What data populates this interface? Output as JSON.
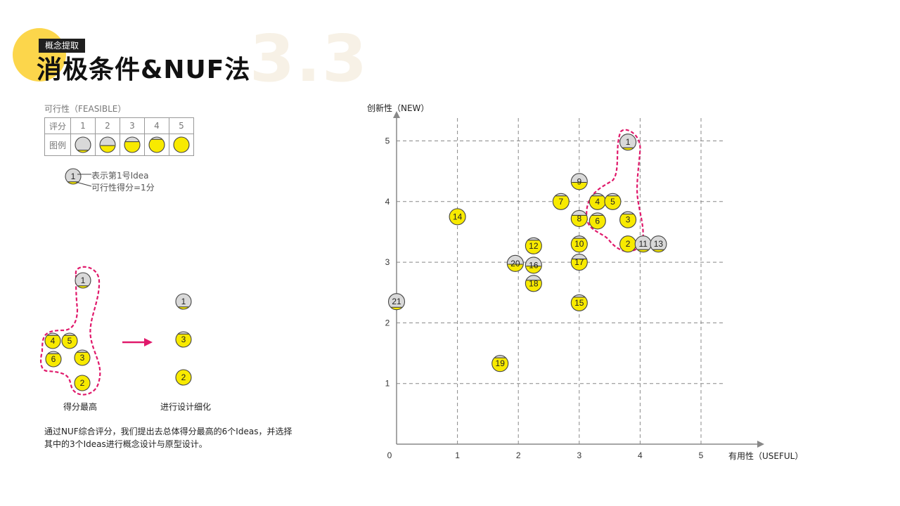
{
  "header": {
    "badge": "概念提取",
    "title": "消极条件&NUF法",
    "bg_number": "3.3",
    "accent_color": "#fcd64b"
  },
  "legend": {
    "title": "可行性（FEASIBLE）",
    "row_score_label": "评分",
    "row_icon_label": "图例",
    "scores": [
      "1",
      "2",
      "3",
      "4",
      "5"
    ],
    "sample_id": "1",
    "sample_line1": "表示第1号Idea",
    "sample_line2": "可行性得分=1分"
  },
  "process": {
    "left_caption": "得分最高",
    "right_caption": "进行设计细化",
    "left_ideas": [
      {
        "id": "1",
        "score": 1
      },
      {
        "id": "4",
        "score": 4
      },
      {
        "id": "5",
        "score": 4
      },
      {
        "id": "6",
        "score": 4
      },
      {
        "id": "3",
        "score": 4
      },
      {
        "id": "2",
        "score": 5
      }
    ],
    "right_ideas": [
      {
        "id": "1",
        "score": 1
      },
      {
        "id": "3",
        "score": 4
      },
      {
        "id": "2",
        "score": 5
      }
    ],
    "highlight_color": "#e0196b"
  },
  "description": "通过NUF综合评分，我们提出去总体得分最高的6个Ideas，并选择其中的3个Ideas进行概念设计与原型设计。",
  "chart_data": {
    "type": "scatter",
    "ylabel": "创新性（NEW）",
    "xlabel": "有用性（USEFUL）",
    "xlim": [
      0,
      5
    ],
    "ylim": [
      0,
      5
    ],
    "x_ticks": [
      "0",
      "1",
      "2",
      "3",
      "4",
      "5"
    ],
    "y_ticks": [
      "1",
      "2",
      "3",
      "4",
      "5"
    ],
    "grid": true,
    "point_color": "#f8ea00",
    "empty_color": "#d9d9d9",
    "points": [
      {
        "id": "1",
        "x": 3.8,
        "y": 4.98,
        "feasibility": 1
      },
      {
        "id": "2",
        "x": 3.8,
        "y": 3.3,
        "feasibility": 5
      },
      {
        "id": "3",
        "x": 3.8,
        "y": 3.7,
        "feasibility": 4
      },
      {
        "id": "4",
        "x": 3.3,
        "y": 4.0,
        "feasibility": 4
      },
      {
        "id": "5",
        "x": 3.55,
        "y": 4.0,
        "feasibility": 4
      },
      {
        "id": "6",
        "x": 3.3,
        "y": 3.68,
        "feasibility": 4
      },
      {
        "id": "7",
        "x": 2.7,
        "y": 4.0,
        "feasibility": 4
      },
      {
        "id": "8",
        "x": 3.0,
        "y": 3.72,
        "feasibility": 3
      },
      {
        "id": "9",
        "x": 3.0,
        "y": 4.33,
        "feasibility": 2
      },
      {
        "id": "10",
        "x": 3.0,
        "y": 3.3,
        "feasibility": 4
      },
      {
        "id": "11",
        "x": 4.05,
        "y": 3.3,
        "feasibility": 1
      },
      {
        "id": "12",
        "x": 2.25,
        "y": 3.27,
        "feasibility": 4
      },
      {
        "id": "13",
        "x": 4.3,
        "y": 3.3,
        "feasibility": 1
      },
      {
        "id": "14",
        "x": 1.0,
        "y": 3.75,
        "feasibility": 5
      },
      {
        "id": "15",
        "x": 3.0,
        "y": 2.33,
        "feasibility": 4
      },
      {
        "id": "16",
        "x": 2.25,
        "y": 2.95,
        "feasibility": 2
      },
      {
        "id": "17",
        "x": 3.0,
        "y": 3.0,
        "feasibility": 3
      },
      {
        "id": "18",
        "x": 2.25,
        "y": 2.65,
        "feasibility": 3
      },
      {
        "id": "19",
        "x": 1.7,
        "y": 1.33,
        "feasibility": 4
      },
      {
        "id": "20",
        "x": 1.95,
        "y": 2.98,
        "feasibility": 2
      },
      {
        "id": "21",
        "x": 0.0,
        "y": 2.35,
        "feasibility": 1
      }
    ]
  }
}
